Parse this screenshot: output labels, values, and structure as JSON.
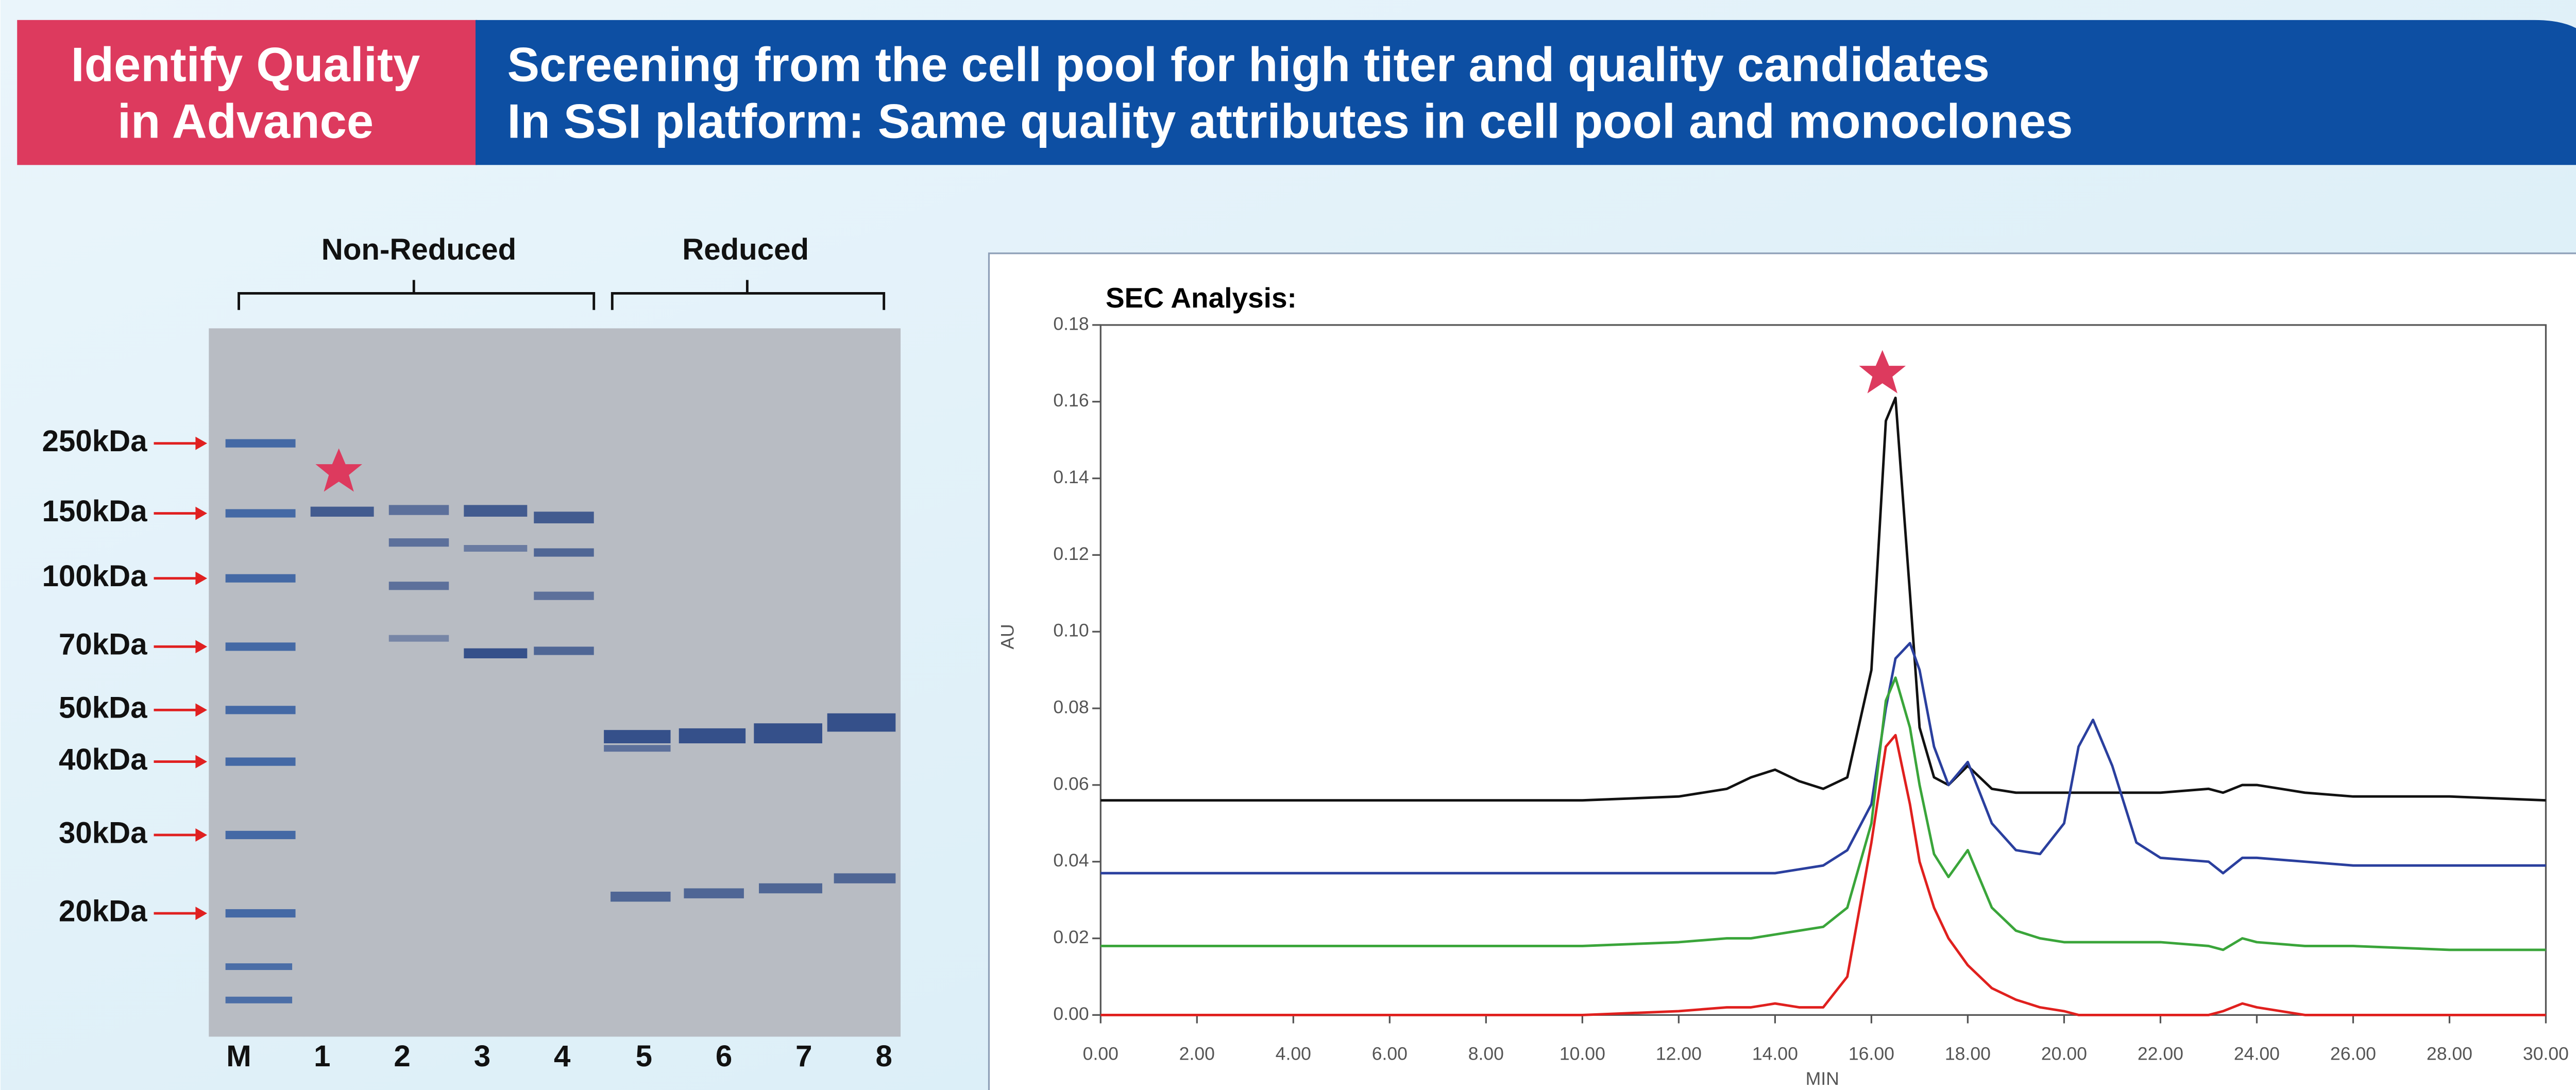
{
  "header": {
    "label_lines": [
      "Identify Quality",
      "in Advance"
    ],
    "title_lines": [
      "Screening from the cell pool for high titer and quality candidates",
      "In SSI platform: Same quality attributes in cell pool and monoclones"
    ]
  },
  "gel": {
    "brackets": [
      "Non-Reduced",
      "Reduced"
    ],
    "marker_labels": [
      "250kDa",
      "150kDa",
      "100kDa",
      "70kDa",
      "50kDa",
      "40kDa",
      "30kDa",
      "20kDa"
    ],
    "lane_labels": [
      "M",
      "1",
      "2",
      "3",
      "4",
      "5",
      "6",
      "7",
      "8"
    ]
  },
  "chart_data": {
    "type": "line",
    "title": "SEC Analysis:",
    "x_label": "MIN",
    "y_label": "AU",
    "x": [
      0,
      2,
      4,
      6,
      8,
      10,
      12,
      13,
      13.5,
      14,
      14.5,
      15,
      15.5,
      16,
      16.3,
      16.5,
      16.8,
      17,
      17.3,
      17.6,
      18,
      18.5,
      19,
      19.5,
      20,
      20.3,
      20.6,
      21,
      21.5,
      22,
      23,
      23.3,
      23.7,
      24,
      25,
      26,
      28,
      30
    ],
    "series": [
      {
        "color": "#111111",
        "values": [
          0.056,
          0.056,
          0.056,
          0.056,
          0.056,
          0.056,
          0.057,
          0.059,
          0.062,
          0.064,
          0.061,
          0.059,
          0.062,
          0.09,
          0.155,
          0.161,
          0.11,
          0.075,
          0.062,
          0.06,
          0.065,
          0.059,
          0.058,
          0.058,
          0.058,
          0.058,
          0.058,
          0.058,
          0.058,
          0.058,
          0.059,
          0.058,
          0.06,
          0.06,
          0.058,
          0.057,
          0.057,
          0.056
        ]
      },
      {
        "color": "#2a3f9e",
        "values": [
          0.037,
          0.037,
          0.037,
          0.037,
          0.037,
          0.037,
          0.037,
          0.037,
          0.037,
          0.037,
          0.038,
          0.039,
          0.043,
          0.055,
          0.08,
          0.093,
          0.097,
          0.09,
          0.07,
          0.06,
          0.066,
          0.05,
          0.043,
          0.042,
          0.05,
          0.07,
          0.077,
          0.065,
          0.045,
          0.041,
          0.04,
          0.037,
          0.041,
          0.041,
          0.04,
          0.039,
          0.039,
          0.039
        ]
      },
      {
        "color": "#3aa53a",
        "values": [
          0.018,
          0.018,
          0.018,
          0.018,
          0.018,
          0.018,
          0.019,
          0.02,
          0.02,
          0.021,
          0.022,
          0.023,
          0.028,
          0.05,
          0.082,
          0.088,
          0.075,
          0.06,
          0.042,
          0.036,
          0.043,
          0.028,
          0.022,
          0.02,
          0.019,
          0.019,
          0.019,
          0.019,
          0.019,
          0.019,
          0.018,
          0.017,
          0.02,
          0.019,
          0.018,
          0.018,
          0.017,
          0.017
        ]
      },
      {
        "color": "#e0201e",
        "values": [
          0,
          0,
          0,
          0,
          0,
          0,
          0.001,
          0.002,
          0.002,
          0.003,
          0.002,
          0.002,
          0.01,
          0.045,
          0.07,
          0.073,
          0.055,
          0.04,
          0.028,
          0.02,
          0.013,
          0.007,
          0.004,
          0.002,
          0.001,
          0,
          0,
          0,
          0,
          0,
          0,
          0.001,
          0.003,
          0.002,
          0,
          0,
          0,
          0
        ]
      }
    ],
    "xlim": [
      0,
      30
    ],
    "xticks": [
      {
        "value": 0,
        "label": "0.00"
      },
      {
        "value": 2,
        "label": "2.00"
      },
      {
        "value": 4,
        "label": "4.00"
      },
      {
        "value": 6,
        "label": "6.00"
      },
      {
        "value": 8,
        "label": "8.00"
      },
      {
        "value": 10,
        "label": "10.00"
      },
      {
        "value": 12,
        "label": "12.00"
      },
      {
        "value": 14,
        "label": "14.00"
      },
      {
        "value": 16,
        "label": "16.00"
      },
      {
        "value": 18,
        "label": "18.00"
      },
      {
        "value": 20,
        "label": "20.00"
      },
      {
        "value": 22,
        "label": "22.00"
      },
      {
        "value": 24,
        "label": "24.00"
      },
      {
        "value": 26,
        "label": "26.00"
      },
      {
        "value": 28,
        "label": "28.00"
      },
      {
        "value": 30,
        "label": "30.00"
      }
    ],
    "ylim": [
      0,
      0.18
    ],
    "yticks": [
      {
        "value": 0,
        "label": "0.00"
      },
      {
        "value": 0.02,
        "label": "0.02"
      },
      {
        "value": 0.04,
        "label": "0.04"
      },
      {
        "value": 0.06,
        "label": "0.06"
      },
      {
        "value": 0.08,
        "label": "0.08"
      },
      {
        "value": 0.1,
        "label": "0.10"
      },
      {
        "value": 0.12,
        "label": "0.12"
      },
      {
        "value": 0.14,
        "label": "0.14"
      },
      {
        "value": 0.16,
        "label": "0.16"
      },
      {
        "value": 0.18,
        "label": "0.18"
      }
    ]
  }
}
